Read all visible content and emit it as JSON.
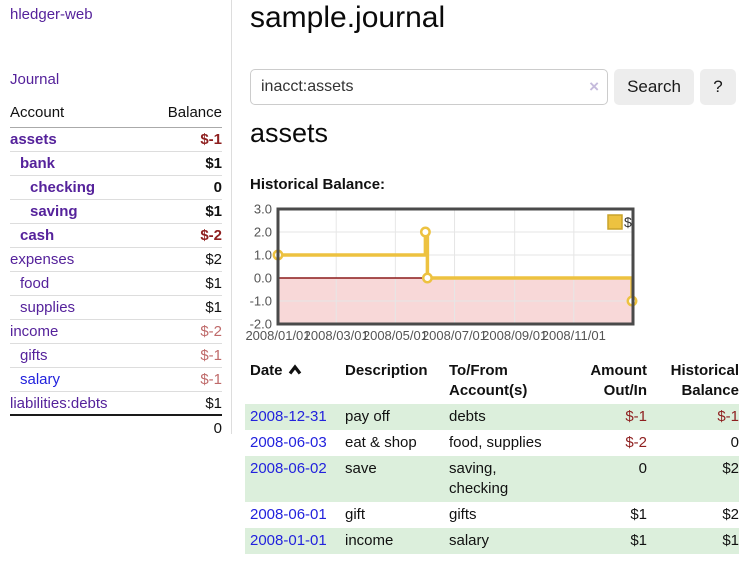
{
  "sidebar": {
    "app_title": "hledger-web",
    "nav": {
      "journal": "Journal"
    },
    "accounts_table": {
      "headers": {
        "account": "Account",
        "balance": "Balance"
      },
      "rows": [
        {
          "name": "assets",
          "depth": 1,
          "bold": true,
          "balance": "$-1",
          "balance_style": "neg-strong",
          "link_color": "purple"
        },
        {
          "name": "bank",
          "depth": 2,
          "bold": true,
          "balance": "$1",
          "balance_style": "pos",
          "link_color": "purple"
        },
        {
          "name": "checking",
          "depth": 3,
          "bold": true,
          "balance": "0",
          "balance_style": "pos",
          "link_color": "purple"
        },
        {
          "name": "saving",
          "depth": 3,
          "bold": true,
          "balance": "$1",
          "balance_style": "pos",
          "link_color": "purple"
        },
        {
          "name": "cash",
          "depth": 2,
          "bold": true,
          "balance": "$-2",
          "balance_style": "neg-strong",
          "link_color": "purple"
        },
        {
          "name": "expenses",
          "depth": 1,
          "bold": false,
          "balance": "$2",
          "balance_style": "pos",
          "link_color": "purple"
        },
        {
          "name": "food",
          "depth": 2,
          "bold": false,
          "balance": "$1",
          "balance_style": "pos",
          "link_color": "purple"
        },
        {
          "name": "supplies",
          "depth": 2,
          "bold": false,
          "balance": "$1",
          "balance_style": "pos",
          "link_color": "purple"
        },
        {
          "name": "income",
          "depth": 1,
          "bold": false,
          "balance": "$-2",
          "balance_style": "neg-muted",
          "link_color": "purple"
        },
        {
          "name": "gifts",
          "depth": 2,
          "bold": false,
          "balance": "$-1",
          "balance_style": "neg-muted",
          "link_color": "purple"
        },
        {
          "name": "salary",
          "depth": 2,
          "bold": false,
          "balance": "$-1",
          "balance_style": "neg-muted",
          "link_color": "blue"
        },
        {
          "name": "liabilities:debts",
          "depth": 1,
          "bold": false,
          "balance": "$1",
          "balance_style": "pos",
          "link_color": "purple"
        }
      ],
      "total": "0"
    }
  },
  "header": {
    "title": "sample.journal"
  },
  "search": {
    "value": "inacct:assets",
    "clear_icon": "×",
    "search_label": "Search",
    "help_label": "?"
  },
  "main": {
    "heading": "assets",
    "chart_label": "Historical Balance:"
  },
  "chart_data": {
    "type": "line",
    "step": true,
    "title": "Historical Balance",
    "xlabel": "",
    "ylabel": "",
    "x": [
      "2008-01-01",
      "2008-06-01",
      "2008-06-03",
      "2008-12-31"
    ],
    "values": [
      1,
      2,
      0,
      -1
    ],
    "xticks": [
      "2008/01/01",
      "2008/03/01",
      "2008/05/01",
      "2008/07/01",
      "2008/09/01",
      "2008/11/01"
    ],
    "yticks": [
      3.0,
      2.0,
      1.0,
      0.0,
      -1.0,
      -2.0
    ],
    "xlim": [
      "2008-01-01",
      "2008-12-31"
    ],
    "ylim": [
      -2,
      3
    ],
    "grid": true,
    "legend": {
      "label": "$",
      "position": "top-right"
    },
    "colors": {
      "series": "#edc240",
      "marker_fill": "#ffffff",
      "negative_region": "#f8d8d8",
      "zero_line": "#8b1a1a",
      "grid": "#e6e6e6",
      "border": "#4a4a4a",
      "tick_text": "#545454",
      "legend_swatch_border": "#c9a32a"
    }
  },
  "table": {
    "headers": [
      {
        "line1": "Date",
        "line2": "",
        "sorted": "asc"
      },
      {
        "line1": "Description",
        "line2": ""
      },
      {
        "line1": "To/From",
        "line2": "Account(s)"
      },
      {
        "line1": "Amount",
        "line2": "Out/In"
      },
      {
        "line1": "Historical",
        "line2": "Balance"
      }
    ],
    "rows": [
      {
        "date": "2008-12-31",
        "description": "pay off",
        "accounts": [
          "debts"
        ],
        "amount": "$-1",
        "amount_neg": true,
        "balance": "$-1",
        "balance_neg": true,
        "green": true
      },
      {
        "date": "2008-06-03",
        "description": "eat & shop",
        "accounts": [
          "food, supplies"
        ],
        "amount": "$-2",
        "amount_neg": true,
        "balance": "0",
        "balance_neg": false,
        "green": false
      },
      {
        "date": "2008-06-02",
        "description": "save",
        "accounts": [
          "saving,",
          "checking"
        ],
        "amount": "0",
        "amount_neg": false,
        "balance": "$2",
        "balance_neg": false,
        "green": true
      },
      {
        "date": "2008-06-01",
        "description": "gift",
        "accounts": [
          "gifts"
        ],
        "amount": "$1",
        "amount_neg": false,
        "balance": "$2",
        "balance_neg": false,
        "green": false
      },
      {
        "date": "2008-01-01",
        "description": "income",
        "accounts": [
          "salary"
        ],
        "amount": "$1",
        "amount_neg": false,
        "balance": "$1",
        "balance_neg": false,
        "green": true
      }
    ]
  },
  "colors": {
    "link_purple": "#55229b",
    "link_blue": "#2222dd",
    "negative_strong": "#8e1f1f",
    "negative_muted": "#bf6a6a",
    "row_green": "#dcefdc",
    "button_bg": "#ededed"
  }
}
